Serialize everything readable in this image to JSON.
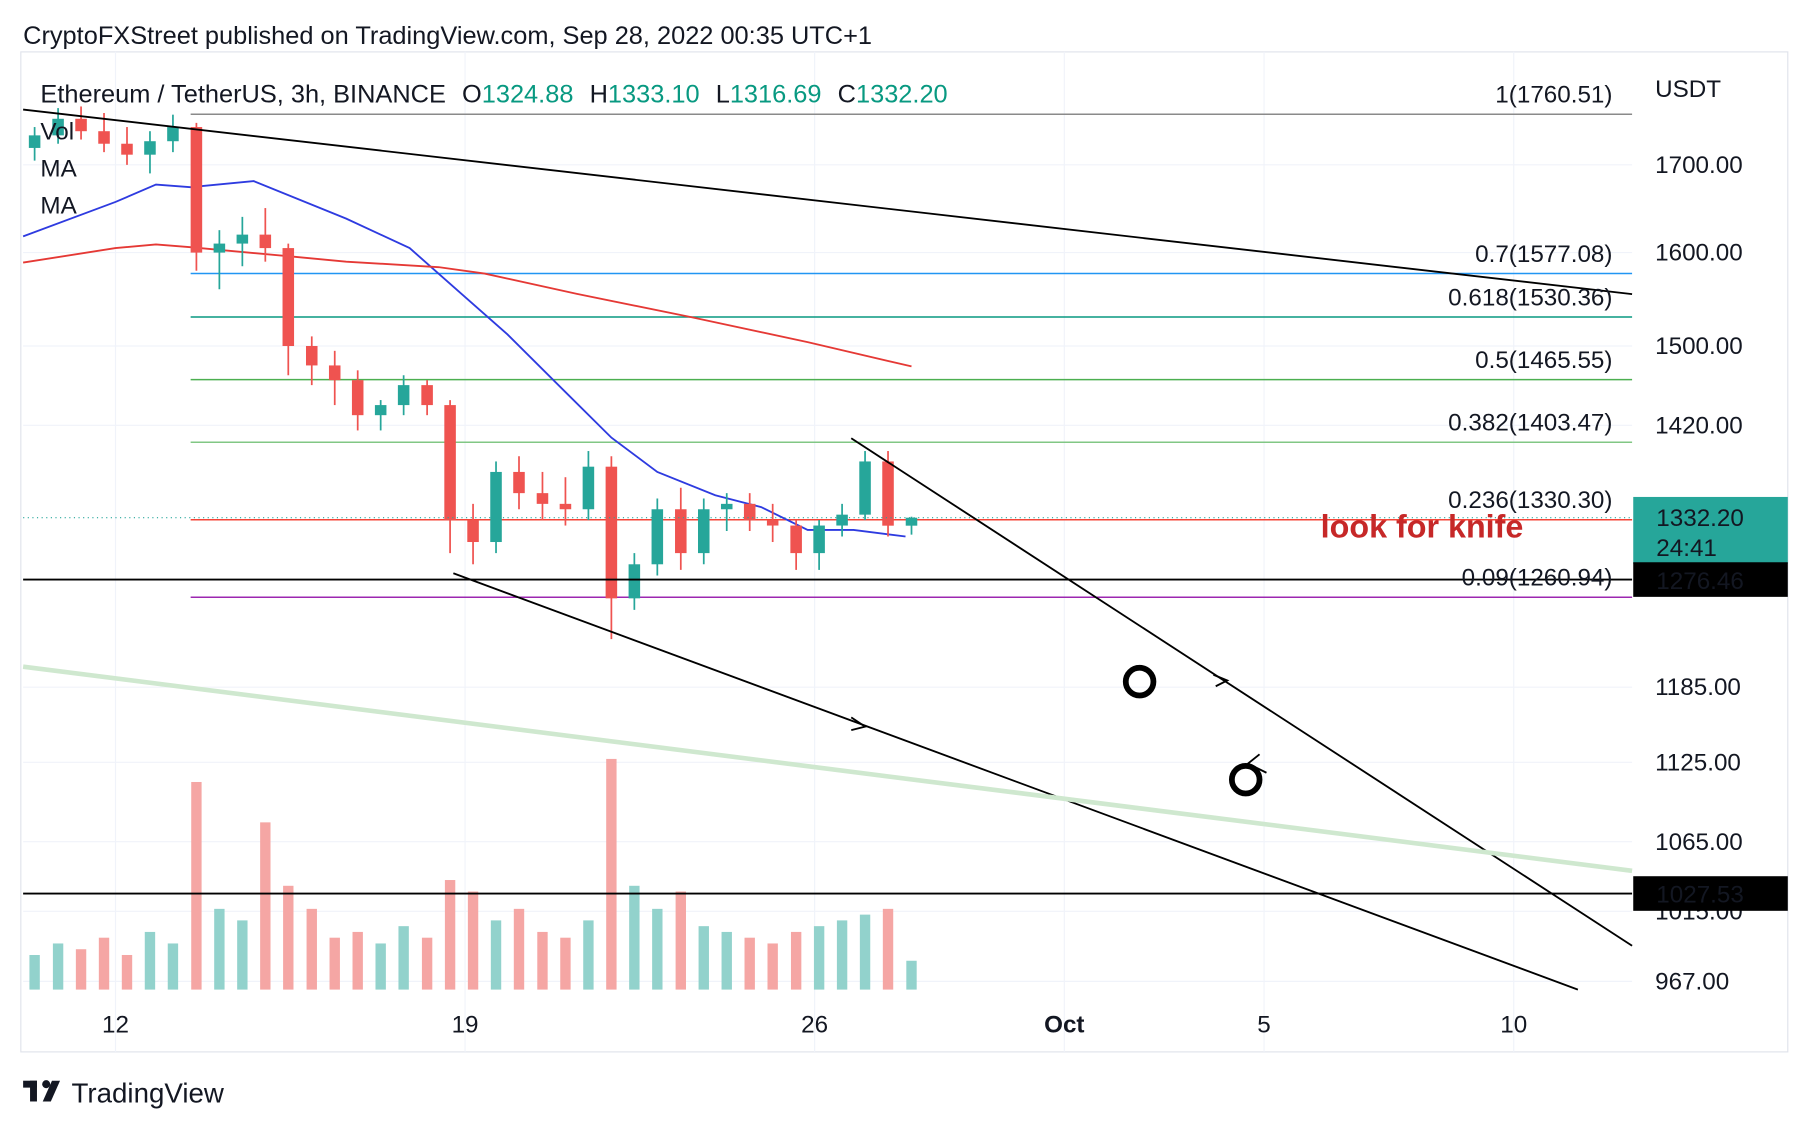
{
  "header": "CryptoFXStreet published on TradingView.com, Sep 28, 2022 00:35 UTC+1",
  "footer": "TradingView",
  "chart_data": {
    "type": "candlestick",
    "title": "Ethereum / TetherUS, 3h, BINANCE",
    "currency": "USDT",
    "ohlc_letters": [
      "O",
      "H",
      "L",
      "C"
    ],
    "last_bar_labels": {
      "open": "1324.88",
      "high": "1333.10",
      "low": "1316.69",
      "close": "1332.20"
    },
    "last_price_countdown": "24:41",
    "annotation": "look for knife",
    "up_color": "#26a69a",
    "down_color": "#ef5350",
    "volume_up_color": "#92d2cc",
    "volume_down_color": "#f5a6a4",
    "x": [
      10.38,
      10.85,
      11.31,
      11.77,
      12.23,
      12.69,
      13.15,
      13.62,
      14.08,
      14.54,
      15.0,
      15.46,
      15.93,
      16.39,
      16.85,
      17.31,
      17.77,
      18.24,
      18.7,
      19.16,
      19.62,
      20.08,
      20.55,
      21.01,
      21.47,
      21.93,
      22.39,
      22.85,
      23.32,
      23.78,
      24.24,
      24.7,
      25.16,
      25.63,
      26.09,
      26.55,
      27.01,
      27.47,
      27.94
    ],
    "open": [
      1720,
      1735,
      1755,
      1740,
      1725,
      1712,
      1728,
      1745,
      1600,
      1610,
      1620,
      1605,
      1500,
      1480,
      1465,
      1430,
      1440,
      1460,
      1440,
      1330,
      1310,
      1375,
      1355,
      1345,
      1340,
      1380,
      1260,
      1290,
      1340,
      1300,
      1340,
      1345,
      1330,
      1325,
      1300,
      1325,
      1335,
      1385,
      1324.88
    ],
    "high": [
      1745,
      1768,
      1770,
      1762,
      1745,
      1740,
      1760,
      1750,
      1625,
      1640,
      1650,
      1610,
      1510,
      1495,
      1475,
      1445,
      1470,
      1465,
      1445,
      1345,
      1385,
      1390,
      1375,
      1370,
      1395,
      1390,
      1300,
      1350,
      1360,
      1350,
      1355,
      1355,
      1345,
      1330,
      1330,
      1345,
      1395,
      1395,
      1333.1
    ],
    "low": [
      1705,
      1725,
      1730,
      1715,
      1700,
      1690,
      1715,
      1580,
      1560,
      1585,
      1590,
      1470,
      1460,
      1440,
      1415,
      1415,
      1430,
      1430,
      1300,
      1290,
      1300,
      1340,
      1330,
      1325,
      1330,
      1225,
      1250,
      1280,
      1285,
      1290,
      1320,
      1320,
      1310,
      1285,
      1285,
      1315,
      1330,
      1315,
      1316.69
    ],
    "close": [
      1735,
      1755,
      1740,
      1725,
      1712,
      1728,
      1745,
      1600,
      1610,
      1620,
      1605,
      1500,
      1480,
      1465,
      1430,
      1440,
      1460,
      1440,
      1330,
      1310,
      1375,
      1355,
      1345,
      1340,
      1380,
      1260,
      1290,
      1340,
      1300,
      1340,
      1345,
      1330,
      1325,
      1300,
      1325,
      1335,
      1385,
      1324.88,
      1332.2
    ],
    "volume_name": "Vol",
    "volume": [
      30,
      40,
      35,
      45,
      30,
      50,
      40,
      180,
      70,
      60,
      145,
      90,
      70,
      45,
      50,
      40,
      55,
      45,
      95,
      85,
      60,
      70,
      50,
      45,
      60,
      200,
      90,
      70,
      85,
      55,
      50,
      45,
      40,
      50,
      55,
      60,
      65,
      70,
      25
    ],
    "moving_averages": [
      {
        "name": "MA",
        "color": "#2e3be0",
        "x": [
          10.15,
          12,
          12.81,
          13.5,
          14.77,
          16.62,
          17.89,
          18.93,
          19.85,
          21.01,
          21.93,
          22.85,
          24.01,
          24.93,
          25.86,
          26.78,
          27.82
        ],
        "values": [
          1618,
          1657,
          1677,
          1674,
          1681,
          1638,
          1605,
          1555,
          1512,
          1453,
          1408,
          1375,
          1353,
          1342,
          1321,
          1321,
          1315
        ]
      },
      {
        "name": "MA",
        "color": "#e53935",
        "x": [
          10.15,
          12,
          12.81,
          13.5,
          15.46,
          16.62,
          18.47,
          19.39,
          21.24,
          23.55,
          25.86,
          27.94
        ],
        "values": [
          1589,
          1605,
          1609,
          1606,
          1596,
          1590,
          1584,
          1577,
          1555,
          1530,
          1504,
          1479
        ]
      }
    ],
    "fib_levels": [
      {
        "value": 1760.51,
        "label": "1(1760.51)",
        "color": "#8a8a8a"
      },
      {
        "value": 1577.08,
        "label": "0.7(1577.08)",
        "color": "#2196f3"
      },
      {
        "value": 1530.36,
        "label": "0.618(1530.36)",
        "color": "#089981"
      },
      {
        "value": 1465.55,
        "label": "0.5(1465.55)",
        "color": "#4caf50"
      },
      {
        "value": 1403.47,
        "label": "0.382(1403.47)",
        "color": "#81c784"
      },
      {
        "value": 1330.3,
        "label": "0.236(1330.30)",
        "color": "#f44336"
      },
      {
        "value": 1260.94,
        "label": "0.09(1260.94)",
        "color": "#9c27b0"
      }
    ],
    "price_lines": [
      1276.46,
      1027.53
    ],
    "xlim": [
      10.15,
      42.37
    ],
    "xticks": [
      12,
      19,
      26,
      {
        "value": 31,
        "label": "Oct"
      },
      {
        "value": 35,
        "label": "5"
      },
      {
        "value": 40,
        "label": "10"
      }
    ],
    "ylim": [
      960,
      1838
    ],
    "log_scale": true,
    "yticks": [
      {
        "value": 1700,
        "label": "1700.00"
      },
      {
        "value": 1600,
        "label": "1600.00"
      },
      {
        "value": 1500,
        "label": "1500.00"
      },
      {
        "value": 1420,
        "label": "1420.00"
      },
      {
        "value": 1185,
        "label": "1185.00"
      },
      {
        "value": 1125,
        "label": "1125.00"
      },
      {
        "value": 1065,
        "label": "1065.00"
      },
      {
        "value": 1015,
        "label": "1015.00"
      },
      {
        "value": 967,
        "label": "967.00"
      }
    ],
    "grid": true
  }
}
